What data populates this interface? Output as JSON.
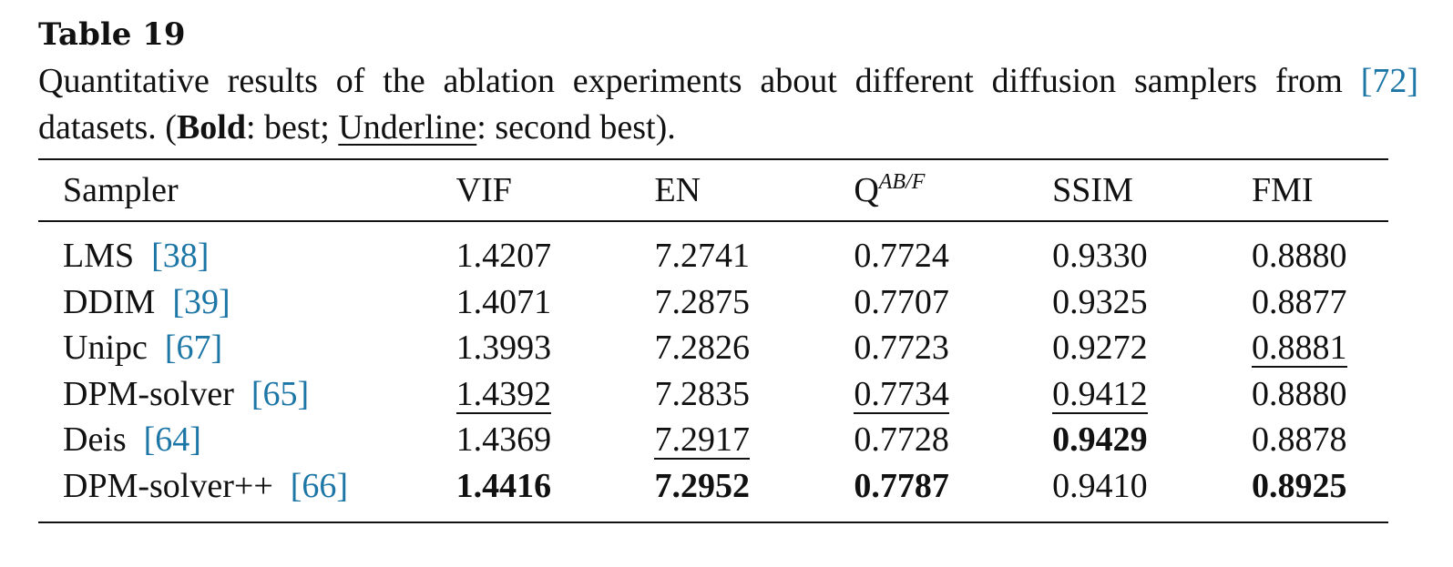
{
  "title": "Table 19",
  "caption": {
    "text_before": "Quantitative results of the ablation experiments about different diffusion samplers from ",
    "cite": "[72]",
    "text_after": " datasets. (",
    "bold_word": "Bold",
    "bold_desc": ": best; ",
    "underline_word": "Underline",
    "underline_desc": ": second best)."
  },
  "table": {
    "headers": {
      "sampler": "Sampler",
      "vif": "VIF",
      "en": "EN",
      "q_base": "Q",
      "q_sup": "AB/F",
      "ssim": "SSIM",
      "fmi": "FMI"
    },
    "rows": [
      {
        "name": "LMS",
        "ref": "[38]",
        "vif": "1.4207",
        "en": "7.2741",
        "q": "0.7724",
        "ssim": "0.9330",
        "fmi": "0.8880"
      },
      {
        "name": "DDIM",
        "ref": "[39]",
        "vif": "1.4071",
        "en": "7.2875",
        "q": "0.7707",
        "ssim": "0.9325",
        "fmi": "0.8877"
      },
      {
        "name": "Unipc",
        "ref": "[67]",
        "vif": "1.3993",
        "en": "7.2826",
        "q": "0.7723",
        "ssim": "0.9272",
        "fmi": "0.8881"
      },
      {
        "name": "DPM-solver",
        "ref": "[65]",
        "vif": "1.4392",
        "en": "7.2835",
        "q": "0.7734",
        "ssim": "0.9412",
        "fmi": "0.8880"
      },
      {
        "name": "Deis",
        "ref": "[64]",
        "vif": "1.4369",
        "en": "7.2917",
        "q": "0.7728",
        "ssim": "0.9429",
        "fmi": "0.8878"
      },
      {
        "name": "DPM-solver++",
        "ref": "[66]",
        "vif": "1.4416",
        "en": "7.2952",
        "q": "0.7787",
        "ssim": "0.9410",
        "fmi": "0.8925"
      }
    ]
  },
  "colors": {
    "citation": "#1c76a6",
    "text": "#111111"
  }
}
